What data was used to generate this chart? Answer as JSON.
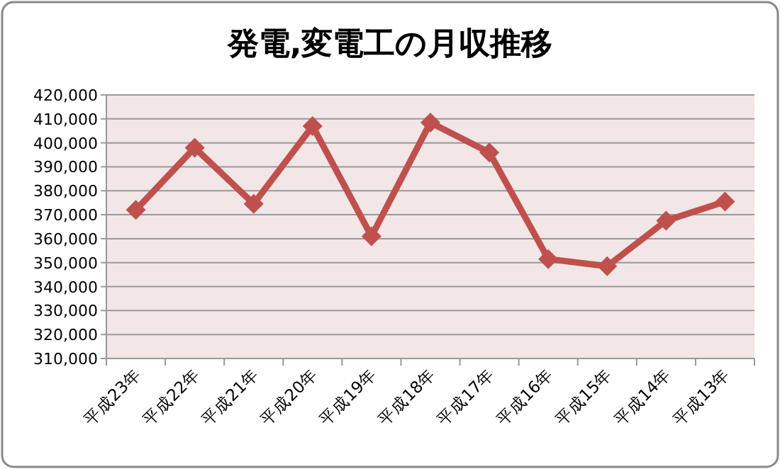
{
  "chart_data": {
    "type": "line",
    "title": "発電,変電工の月収推移",
    "categories": [
      "平成23年",
      "平成22年",
      "平成21年",
      "平成20年",
      "平成19年",
      "平成18年",
      "平成17年",
      "平成16年",
      "平成15年",
      "平成14年",
      "平成13年"
    ],
    "series": [
      {
        "color": "#c0504d",
        "values": [
          372000,
          398000,
          374500,
          407000,
          361000,
          408500,
          396000,
          351500,
          348500,
          367500,
          375500
        ]
      }
    ],
    "ylim": [
      310000,
      420000
    ],
    "yticks": [
      {
        "value": 310000,
        "label": "310,000"
      },
      {
        "value": 320000,
        "label": "320,000"
      },
      {
        "value": 330000,
        "label": "330,000"
      },
      {
        "value": 340000,
        "label": "340,000"
      },
      {
        "value": 350000,
        "label": "350,000"
      },
      {
        "value": 360000,
        "label": "360,000"
      },
      {
        "value": 370000,
        "label": "370,000"
      },
      {
        "value": 380000,
        "label": "380,000"
      },
      {
        "value": 390000,
        "label": "390,000"
      },
      {
        "value": 400000,
        "label": "400,000"
      },
      {
        "value": 410000,
        "label": "410,000"
      },
      {
        "value": 420000,
        "label": "420,000"
      }
    ],
    "grid": "y",
    "marker": "diamond",
    "line_style": "solid"
  }
}
